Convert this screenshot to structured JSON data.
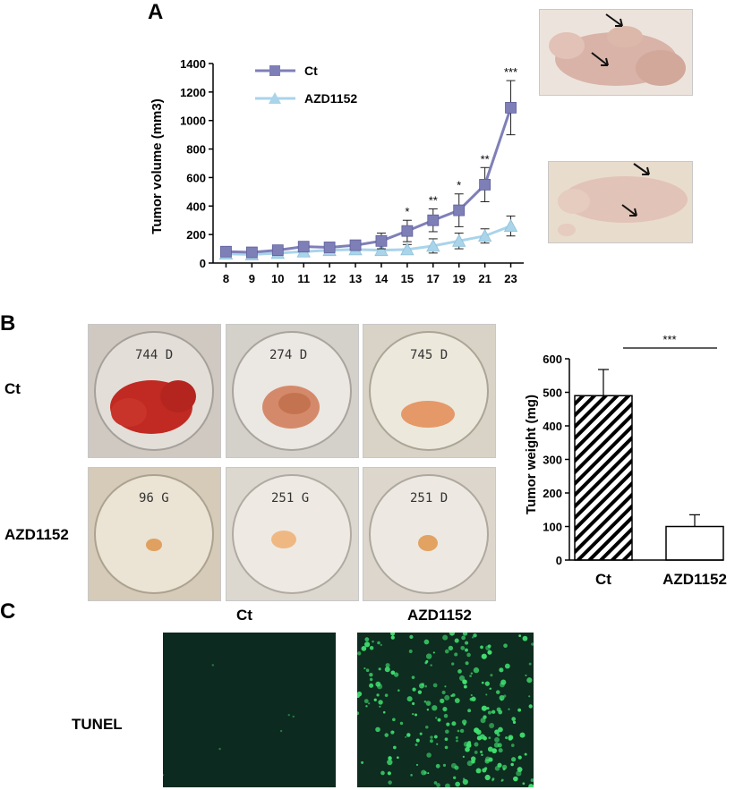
{
  "panels": {
    "a": "A",
    "b": "B",
    "c": "C"
  },
  "chart_data": [
    {
      "type": "line",
      "xlabel": "",
      "ylabel": "Tumor volume (mm3)",
      "ylim": [
        0,
        1400
      ],
      "yticks": [
        0,
        200,
        400,
        600,
        800,
        1000,
        1200,
        1400
      ],
      "x": [
        "8",
        "9",
        "10",
        "11",
        "12",
        "13",
        "14",
        "15",
        "17",
        "19",
        "21",
        "23"
      ],
      "legend": "top-left",
      "grid": false,
      "series": [
        {
          "name": "Ct",
          "color": "#7f7fb8",
          "marker": "square",
          "values": [
            80,
            75,
            90,
            115,
            110,
            125,
            155,
            225,
            300,
            370,
            550,
            1090
          ],
          "errors": [
            20,
            20,
            20,
            25,
            25,
            30,
            55,
            75,
            80,
            115,
            120,
            190
          ]
        },
        {
          "name": "AZD1152",
          "color": "#a9d4ea",
          "marker": "triangle",
          "values": [
            65,
            60,
            70,
            80,
            90,
            95,
            90,
            95,
            120,
            155,
            190,
            260
          ],
          "errors": [
            15,
            15,
            15,
            20,
            20,
            20,
            30,
            35,
            50,
            55,
            50,
            70
          ]
        }
      ],
      "annotations": [
        {
          "x": "15",
          "text": "*"
        },
        {
          "x": "17",
          "text": "**"
        },
        {
          "x": "19",
          "text": "*"
        },
        {
          "x": "21",
          "text": "**"
        },
        {
          "x": "23",
          "text": "***"
        }
      ]
    },
    {
      "type": "bar",
      "ylabel": "Tumor weight (mg)",
      "ylim": [
        0,
        600
      ],
      "yticks": [
        0,
        100,
        200,
        300,
        400,
        500,
        600
      ],
      "categories": [
        "Ct",
        "AZD1152"
      ],
      "values": [
        490,
        100
      ],
      "errors": [
        78,
        35
      ],
      "fills": [
        "hatched",
        "white"
      ],
      "significance": "***"
    }
  ],
  "panel_b": {
    "row_labels": [
      "Ct",
      "AZD1152"
    ],
    "dishes": [
      {
        "label": "744 D",
        "tumor_color": "#c02a22",
        "size": "large"
      },
      {
        "label": "274 D",
        "tumor_color": "#d48a6a",
        "size": "medium"
      },
      {
        "label": "745 D",
        "tumor_color": "#e59868",
        "size": "medium"
      },
      {
        "label": "96 G",
        "tumor_color": "#e0a060",
        "size": "small"
      },
      {
        "label": "251 G",
        "tumor_color": "#efb882",
        "size": "small"
      },
      {
        "label": "251 D",
        "tumor_color": "#e2a262",
        "size": "small"
      }
    ]
  },
  "panel_c": {
    "columns": [
      "Ct",
      "AZD1152"
    ],
    "row_label": "TUNEL",
    "stain_color": "#40e070"
  }
}
